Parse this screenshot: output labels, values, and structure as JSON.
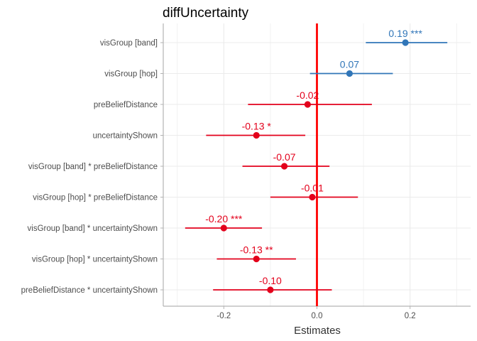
{
  "chart_data": {
    "type": "forest",
    "title": "diffUncertainty",
    "xlabel": "Estimates",
    "ylabel": "",
    "xlim": [
      -0.33,
      0.33
    ],
    "xticks": [
      -0.2,
      0.0,
      0.2
    ],
    "xtick_labels": [
      "-0.2",
      "0.0",
      "0.2"
    ],
    "reference_line": 0,
    "grid": true,
    "colors": {
      "positive": "#3176b8",
      "negative": "#e3001b",
      "reference": "#ff0000"
    },
    "terms": [
      {
        "label": "visGroup [band]",
        "estimate": 0.19,
        "ci_low": 0.105,
        "ci_high": 0.28,
        "text": "0.19 ***",
        "sign": "positive"
      },
      {
        "label": "visGroup [hop]",
        "estimate": 0.07,
        "ci_low": -0.015,
        "ci_high": 0.163,
        "text": "0.07",
        "sign": "positive"
      },
      {
        "label": "preBeliefDistance",
        "estimate": -0.02,
        "ci_low": -0.148,
        "ci_high": 0.118,
        "text": "-0.02",
        "sign": "negative"
      },
      {
        "label": "uncertaintyShown",
        "estimate": -0.13,
        "ci_low": -0.238,
        "ci_high": -0.025,
        "text": "-0.13 *",
        "sign": "negative"
      },
      {
        "label": "visGroup [band] * preBeliefDistance",
        "estimate": -0.07,
        "ci_low": -0.16,
        "ci_high": 0.027,
        "text": "-0.07",
        "sign": "negative"
      },
      {
        "label": "visGroup [hop] * preBeliefDistance",
        "estimate": -0.01,
        "ci_low": -0.1,
        "ci_high": 0.088,
        "text": "-0.01",
        "sign": "negative"
      },
      {
        "label": "visGroup [band] * uncertaintyShown",
        "estimate": -0.2,
        "ci_low": -0.283,
        "ci_high": -0.118,
        "text": "-0.20 ***",
        "sign": "negative"
      },
      {
        "label": "visGroup [hop] * uncertaintyShown",
        "estimate": -0.13,
        "ci_low": -0.215,
        "ci_high": -0.045,
        "text": "-0.13 **",
        "sign": "negative"
      },
      {
        "label": "preBeliefDistance * uncertaintyShown",
        "estimate": -0.1,
        "ci_low": -0.223,
        "ci_high": 0.032,
        "text": "-0.10",
        "sign": "negative"
      }
    ]
  }
}
